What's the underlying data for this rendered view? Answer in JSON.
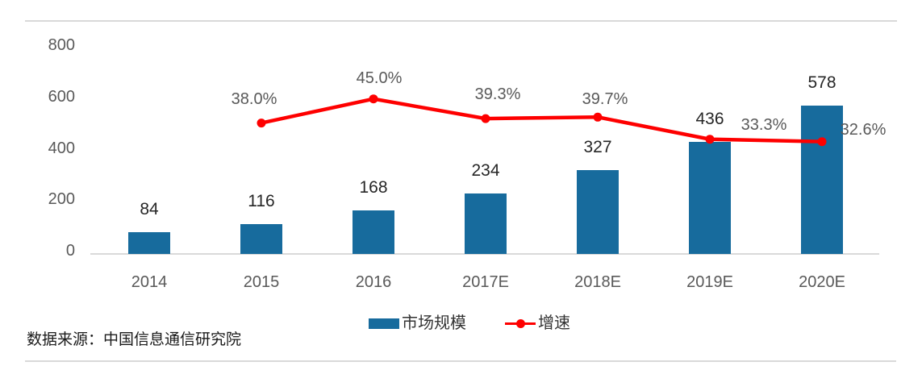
{
  "chart_data": {
    "type": "combo-bar-line",
    "categories": [
      "2014",
      "2015",
      "2016",
      "2017E",
      "2018E",
      "2019E",
      "2020E"
    ],
    "series": [
      {
        "name": "市场规模",
        "type": "bar",
        "color": "#176b9d",
        "values": [
          84,
          116,
          168,
          234,
          327,
          436,
          578
        ],
        "labels": [
          "84",
          "116",
          "168",
          "234",
          "327",
          "436",
          "578"
        ]
      },
      {
        "name": "增速",
        "type": "line",
        "color": "#fe0000",
        "values": [
          null,
          38.0,
          45.0,
          39.3,
          39.7,
          33.3,
          32.6
        ],
        "labels": [
          "",
          "38.0%",
          "45.0%",
          "39.3%",
          "39.7%",
          "33.3%",
          "32.6%"
        ],
        "label_offsets": [
          [
            0,
            0
          ],
          [
            -9,
            -30
          ],
          [
            7,
            -26
          ],
          [
            15,
            -30
          ],
          [
            9,
            -22
          ],
          [
            67,
            -18
          ],
          [
            51,
            -15
          ]
        ]
      }
    ],
    "y_axis": {
      "ticks": [
        "0",
        "200",
        "400",
        "600",
        "800"
      ],
      "tick_values": [
        0,
        200,
        400,
        600,
        800
      ],
      "range": [
        0,
        800
      ]
    },
    "gridlines": false,
    "legend_position": "bottom"
  },
  "legend": {
    "bar_label": "市场规模",
    "line_label": "增速"
  },
  "source_note": "数据来源：中国信息通信研究院",
  "colors": {
    "bar": "#176b9d",
    "line": "#fe0000",
    "axis_line": "#d9d9d9",
    "rule": "#d9d9d9",
    "tick_text": "#595959",
    "value_text": "#262626",
    "pct_text": "#595959",
    "source_text": "#1a1a1a"
  }
}
